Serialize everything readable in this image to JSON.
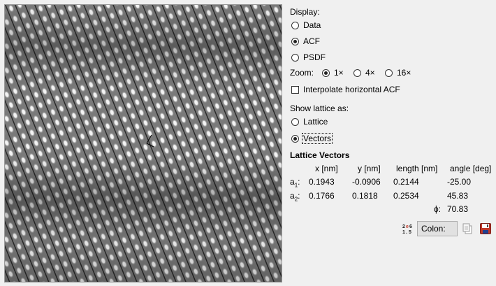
{
  "display": {
    "label": "Display:",
    "options": [
      {
        "label": "Data",
        "selected": false
      },
      {
        "label": "ACF",
        "selected": true
      },
      {
        "label": "PSDF",
        "selected": false
      }
    ]
  },
  "zoom": {
    "label": "Zoom:",
    "options": [
      {
        "label": "1×",
        "selected": true
      },
      {
        "label": "4×",
        "selected": false
      },
      {
        "label": "16×",
        "selected": false
      }
    ]
  },
  "interpolate": {
    "label": "Interpolate horizontal ACF",
    "checked": false
  },
  "show_lattice": {
    "label": "Show lattice as:",
    "options": [
      {
        "label": "Lattice",
        "selected": false
      },
      {
        "label": "Vectors",
        "selected": true
      }
    ]
  },
  "lattice_vectors": {
    "title": "Lattice Vectors",
    "headers": [
      "x [nm]",
      "y [nm]",
      "length [nm]",
      "angle [deg]"
    ],
    "rows": [
      {
        "label": "a",
        "sub": "1",
        "values": [
          "0.1943",
          "-0.0906",
          "0.2144",
          "-25.00"
        ]
      },
      {
        "label": "a",
        "sub": "2",
        "values": [
          "0.1766",
          "0.1818",
          "0.2534",
          "45.83"
        ]
      }
    ],
    "phi_label": "ϕ:",
    "phi_value": "70.83"
  },
  "format_button": {
    "label": "Colon:",
    "icon": "number-format-icon"
  },
  "actions": {
    "copy_icon": "copy-icon",
    "save_icon": "save-icon"
  }
}
